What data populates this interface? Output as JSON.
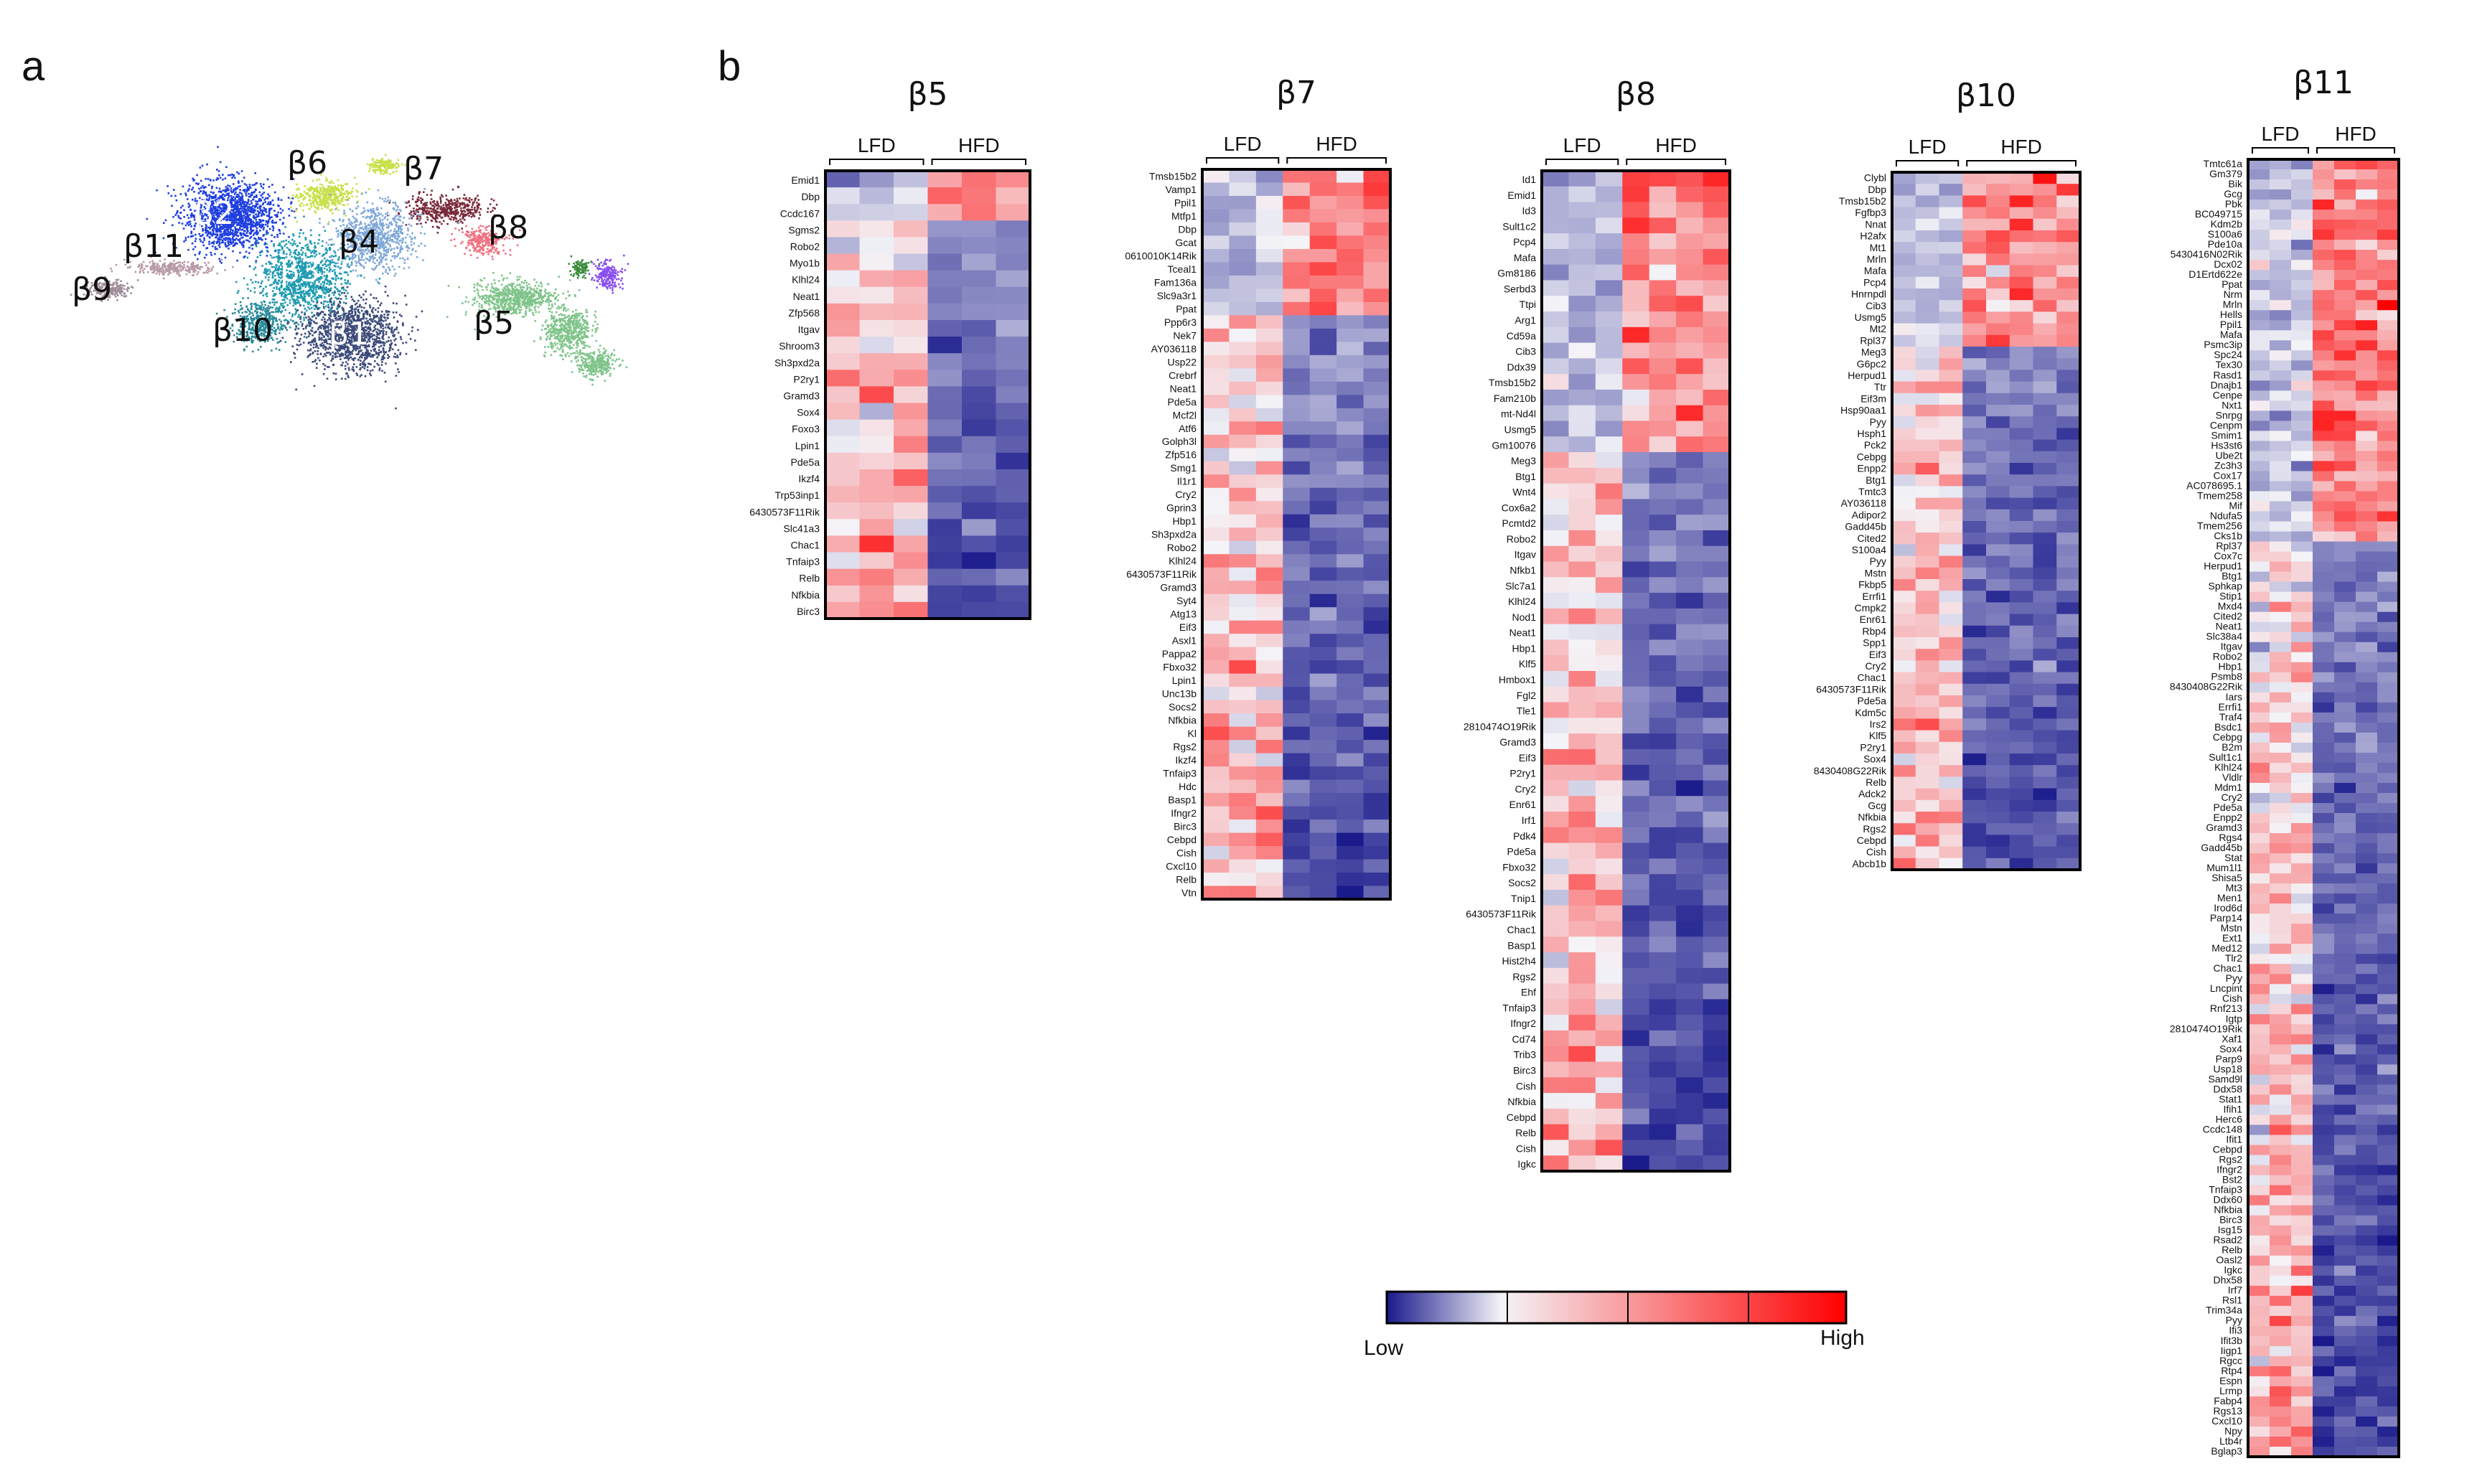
{
  "panel_labels": {
    "a": "a",
    "b": "b"
  },
  "colors": {
    "low": "#1a1a8c",
    "mid": "#f4f4f8",
    "high": "#ff0000"
  },
  "umap": {
    "clusters": [
      {
        "label": "β1",
        "color": "#3c4a7a"
      },
      {
        "label": "β2",
        "color": "#1f3fe0"
      },
      {
        "label": "β3",
        "color": "#1e9bb0"
      },
      {
        "label": "β4",
        "color": "#7fa8d8"
      },
      {
        "label": "β5",
        "color": "#7fc48a"
      },
      {
        "label": "β6",
        "color": "#c9e04a"
      },
      {
        "label": "β7",
        "color": "#7a2a3a"
      },
      {
        "label": "β8",
        "color": "#f07080"
      },
      {
        "label": "β9",
        "color": "#a08c9a"
      },
      {
        "label": "β10",
        "color": "#2a8a9a"
      },
      {
        "label": "β11",
        "color": "#b89aa8"
      }
    ],
    "extra_colors": [
      "#8a4ff0",
      "#3a8a3a"
    ]
  },
  "legend": {
    "low_label": "Low",
    "high_label": "High"
  },
  "chart_data": [
    {
      "type": "heatmap",
      "title": "β5",
      "groups": [
        {
          "label": "LFD",
          "n": 3
        },
        {
          "label": "HFD",
          "n": 3
        }
      ],
      "up_count": 3,
      "rows": [
        "Emid1",
        "Dbp",
        "Ccdc167",
        "Sgms2",
        "Robo2",
        "Myo1b",
        "Klhl24",
        "Neat1",
        "Zfp568",
        "Itgav",
        "Shroom3",
        "Sh3pxd2a",
        "P2ry1",
        "Gramd3",
        "Sox4",
        "Foxo3",
        "Lpin1",
        "Pde5a",
        "Ikzf4",
        "Trp53inp1",
        "6430573F11Rik",
        "Slc41a3",
        "Chac1",
        "Tnfaip3",
        "Relb",
        "Nfkbia",
        "Birc3"
      ]
    },
    {
      "type": "heatmap",
      "title": "β7",
      "groups": [
        {
          "label": "LFD",
          "n": 3
        },
        {
          "label": "HFD",
          "n": 4
        }
      ],
      "up_count": 11,
      "rows": [
        "Tmsb15b2",
        "Vamp1",
        "Ppil1",
        "Mtfp1",
        "Dbp",
        "Gcat",
        "0610010K14Rik",
        "Tceal1",
        "Fam136a",
        "Slc9a3r1",
        "Ppat",
        "Ppp6r3",
        "Nek7",
        "AY036118",
        "Usp22",
        "Crebrf",
        "Neat1",
        "Pde5a",
        "Mcf2l",
        "Atf6",
        "Golph3l",
        "Zfp516",
        "Smg1",
        "Il1r1",
        "Cry2",
        "Gprin3",
        "Hbp1",
        "Sh3pxd2a",
        "Robo2",
        "Klhl24",
        "6430573F11Rik",
        "Gramd3",
        "Syt4",
        "Atg13",
        "Eif3",
        "Asxl1",
        "Pappa2",
        "Fbxo32",
        "Lpin1",
        "Unc13b",
        "Socs2",
        "Nfkbia",
        "Kl",
        "Rgs2",
        "Ikzf4",
        "Tnfaip3",
        "Hdc",
        "Basp1",
        "Ifngr2",
        "Birc3",
        "Cebpd",
        "Cish",
        "Cxcl10",
        "Relb",
        "Vtn"
      ]
    },
    {
      "type": "heatmap",
      "title": "β8",
      "groups": [
        {
          "label": "LFD",
          "n": 3
        },
        {
          "label": "HFD",
          "n": 4
        }
      ],
      "up_count": 18,
      "rows": [
        "Id1",
        "Emid1",
        "Id3",
        "Sult1c2",
        "Pcp4",
        "Mafa",
        "Gm8186",
        "Serbd3",
        "Ttpi",
        "Arg1",
        "Cd59a",
        "Cib3",
        "Ddx39",
        "Tmsb15b2",
        "Fam210b",
        "mt-Nd4l",
        "Usmg5",
        "Gm10076",
        "Meg3",
        "Btg1",
        "Wnt4",
        "Cox6a2",
        "Pcmtd2",
        "Robo2",
        "Itgav",
        "Nfkb1",
        "Slc7a1",
        "Klhl24",
        "Nod1",
        "Neat1",
        "Hbp1",
        "Klf5",
        "Hmbox1",
        "Fgl2",
        "Tle1",
        "2810474O19Rik",
        "Gramd3",
        "Eif3",
        "P2ry1",
        "Cry2",
        "Enr61",
        "Irf1",
        "Pdk4",
        "Pde5a",
        "Fbxo32",
        "Socs2",
        "Tnip1",
        "6430573F11Rik",
        "Chac1",
        "Basp1",
        "Hist2h4",
        "Rgs2",
        "Ehf",
        "Tnfaip3",
        "Ifngr2",
        "Cd74",
        "Trib3",
        "Birc3",
        "Cish",
        "Nfkbia",
        "Cebpd",
        "Relb",
        "Cish",
        "Igkc"
      ]
    },
    {
      "type": "heatmap",
      "title": "β10",
      "groups": [
        {
          "label": "LFD",
          "n": 3
        },
        {
          "label": "HFD",
          "n": 5
        }
      ],
      "up_count": 15,
      "rows": [
        "Clybl",
        "Dbp",
        "Tmsb15b2",
        "Fgfbp3",
        "Nnat",
        "H2afx",
        "Mt1",
        "Mrln",
        "Mafa",
        "Pcp4",
        "Hnrnpdl",
        "Cib3",
        "Usmg5",
        "Mt2",
        "Rpl37",
        "Meg3",
        "G6pc2",
        "Herpud1",
        "Ttr",
        "Eif3m",
        "Hsp90aa1",
        "Pyy",
        "Hsph1",
        "Pck2",
        "Cebpg",
        "Enpp2",
        "Btg1",
        "Tmtc3",
        "AY036118",
        "Adipor2",
        "Gadd45b",
        "Cited2",
        "S100a4",
        "Pyy",
        "Mstn",
        "Fkbp5",
        "Errfi1",
        "Cmpk2",
        "Enr61",
        "Rbp4",
        "Spp1",
        "Eif3",
        "Cry2",
        "Chac1",
        "6430573F11Rik",
        "Pde5a",
        "Kdm5c",
        "Irs2",
        "Klf5",
        "P2ry1",
        "Sox4",
        "8430408G22Rik",
        "Relb",
        "Adck2",
        "Gcg",
        "Nfkbia",
        "Rgs2",
        "Cebpd",
        "Cish",
        "Abcb1b"
      ]
    },
    {
      "type": "heatmap",
      "title": "β11",
      "groups": [
        {
          "label": "LFD",
          "n": 3
        },
        {
          "label": "HFD",
          "n": 4
        }
      ],
      "up_count": 38,
      "rows": [
        "Tmtc61a",
        "Gm379",
        "Bik",
        "Gcg",
        "Pbk",
        "BC049715",
        "Kdm2b",
        "S100a6",
        "Pde10a",
        "5430416N02Rik",
        "Dcx02",
        "D1Ertd622e",
        "Ppat",
        "Nrm",
        "Mrln",
        "Hells",
        "Ppil1",
        "Mafa",
        "Psmc3ip",
        "Spc24",
        "Tex30",
        "Rasd1",
        "Dnajb1",
        "Cenpe",
        "Nxt1",
        "Snrpg",
        "Cenpm",
        "Smim1",
        "Hs3st6",
        "Ube2t",
        "Zc3h3",
        "Cox17",
        "AC078695.1",
        "Tmem258",
        "Mif",
        "Ndufa5",
        "Tmem256",
        "Cks1b",
        "Rpl37",
        "Cox7c",
        "Herpud1",
        "Btg1",
        "Sphkap",
        "Stip1",
        "Mxd4",
        "Cited2",
        "Neat1",
        "Slc38a4",
        "Itgav",
        "Robo2",
        "Hbp1",
        "Psmb8",
        "8430408G22Rik",
        "Iars",
        "Errfi1",
        "Traf4",
        "Bsdc1",
        "Cebpg",
        "B2m",
        "Sult1c1",
        "Klhl24",
        "Vldlr",
        "Mdm1",
        "Cry2",
        "Pde5a",
        "Enpp2",
        "Gramd3",
        "Rgs4",
        "Gadd45b",
        "Stat",
        "Mum1l1",
        "Shisa5",
        "Mt3",
        "Men1",
        "Irod6d",
        "Parp14",
        "Mstn",
        "Ext1",
        "Med12",
        "Tlr2",
        "Chac1",
        "Pyy",
        "Lncpint",
        "Cish",
        "Rnf213",
        "Igtp",
        "2810474O19Rik",
        "Xaf1",
        "Sox4",
        "Parp9",
        "Usp18",
        "Samd9l",
        "Ddx58",
        "Stat1",
        "Ifih1",
        "Herc6",
        "Ccdc148",
        "Ifit1",
        "Cebpd",
        "Rgs2",
        "Ifngr2",
        "Bst2",
        "Tnfaip3",
        "Ddx60",
        "Nfkbia",
        "Birc3",
        "Isg15",
        "Rsad2",
        "Relb",
        "Oasl2",
        "Igkc",
        "Dhx58",
        "Irf7",
        "Rsl1",
        "Trim34a",
        "Pyy",
        "Ifi3",
        "Ifit3b",
        "Iigp1",
        "Rgcc",
        "Rtp4",
        "Espn",
        "Lrmp",
        "Fabp4",
        "Rgs13",
        "Cxcl10",
        "Npy",
        "Ltb4r",
        "Bglap3"
      ]
    }
  ]
}
